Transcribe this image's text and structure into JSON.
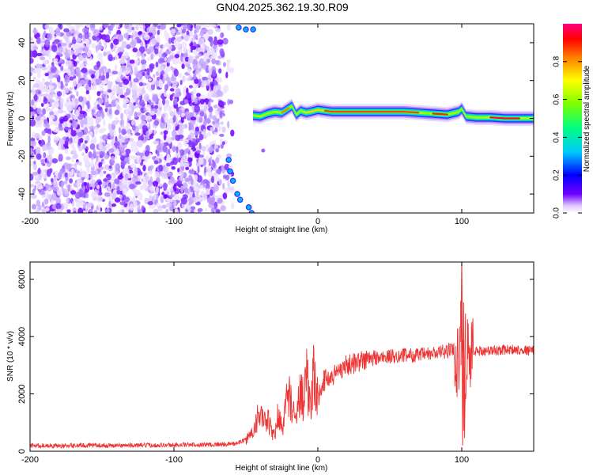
{
  "figure_title": "GN04.2025.362.19.30.R09",
  "chart_data": [
    {
      "type": "heatmap",
      "xlabel": "Height of straight line (km)",
      "ylabel": "Frequency (Hz)",
      "xlim": [
        -200,
        150
      ],
      "ylim": [
        -50,
        50
      ],
      "xticks": [
        -200,
        -100,
        0,
        100
      ],
      "yticks": [
        -40,
        -20,
        0,
        20,
        40
      ],
      "colorbar": {
        "label": "Normalized spectral amplitude",
        "ticks": [
          0.0,
          0.2,
          0.4,
          0.6,
          0.8
        ],
        "tick_labels": [
          "0.0",
          "0.2",
          "0.4",
          "0.6",
          "0.8"
        ],
        "range": [
          0,
          1
        ],
        "colormap": [
          "#ffffff",
          "#7000ff",
          "#0000ff",
          "#00c8ff",
          "#00ff80",
          "#80ff00",
          "#ffff00",
          "#ff8000",
          "#ff0000",
          "#ff0080"
        ]
      },
      "noise_region_x": [
        -200,
        -58
      ],
      "signal_track": [
        [
          -45,
          1.5
        ],
        [
          -40,
          1.0
        ],
        [
          -35,
          2.5
        ],
        [
          -30,
          3.5
        ],
        [
          -25,
          3.0
        ],
        [
          -20,
          5.5
        ],
        [
          -18,
          6.5
        ],
        [
          -15,
          2.0
        ],
        [
          -12,
          4.0
        ],
        [
          -8,
          3.0
        ],
        [
          -5,
          3.5
        ],
        [
          0,
          4.5
        ],
        [
          5,
          4.0
        ],
        [
          10,
          3.5
        ],
        [
          20,
          3.5
        ],
        [
          30,
          3.5
        ],
        [
          40,
          3.5
        ],
        [
          50,
          3.5
        ],
        [
          60,
          3.5
        ],
        [
          70,
          3.0
        ],
        [
          80,
          2.5
        ],
        [
          90,
          2.0
        ],
        [
          98,
          3.5
        ],
        [
          100,
          5.0
        ],
        [
          103,
          1.0
        ],
        [
          110,
          0.5
        ],
        [
          120,
          0.5
        ],
        [
          130,
          0.0
        ],
        [
          140,
          0.0
        ],
        [
          150,
          0.0
        ]
      ]
    },
    {
      "type": "line",
      "xlabel": "Height of straight line (km)",
      "ylabel": "SNR (10 * v/v)",
      "xlim": [
        -200,
        150
      ],
      "ylim": [
        0,
        6600
      ],
      "xticks": [
        -200,
        -100,
        0,
        100
      ],
      "yticks": [
        0,
        2000,
        4000,
        6000
      ],
      "series": [
        {
          "color": "#ee3333",
          "x": [
            -200,
            -180,
            -160,
            -140,
            -120,
            -100,
            -80,
            -60,
            -55,
            -50,
            -45,
            -42,
            -40,
            -38,
            -35,
            -32,
            -30,
            -28,
            -25,
            -22,
            -20,
            -18,
            -15,
            -12,
            -10,
            -8,
            -5,
            -3,
            0,
            3,
            5,
            10,
            15,
            20,
            30,
            40,
            50,
            60,
            70,
            80,
            85,
            90,
            95,
            98,
            100,
            102,
            104,
            106,
            110,
            120,
            130,
            140,
            150
          ],
          "y": [
            200,
            190,
            210,
            200,
            210,
            220,
            230,
            250,
            300,
            400,
            700,
            1200,
            1500,
            900,
            1100,
            700,
            500,
            1300,
            800,
            1600,
            2200,
            1400,
            1000,
            2300,
            1800,
            2900,
            1200,
            2600,
            1800,
            2400,
            2500,
            2600,
            2850,
            3000,
            3150,
            3250,
            3300,
            3350,
            3350,
            3400,
            3450,
            3500,
            3550,
            3000,
            6400,
            200,
            3800,
            3400,
            3500,
            3500,
            3550,
            3550,
            3500
          ]
        }
      ]
    }
  ]
}
